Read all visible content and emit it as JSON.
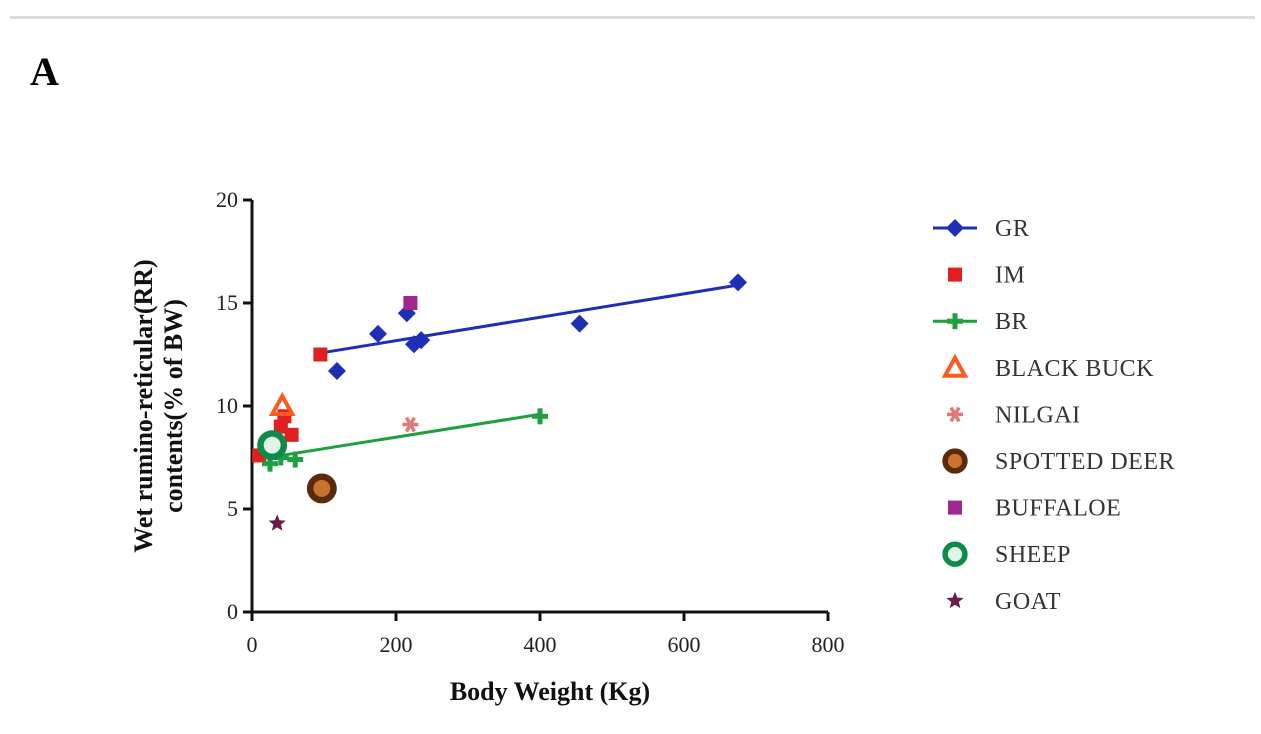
{
  "panel_label": "A",
  "chart_data": {
    "type": "scatter",
    "title": "",
    "xlabel": "Body Weight (Kg)",
    "ylabel_lines": [
      "Wet rumino-reticular(RR)",
      "contents(% of BW)"
    ],
    "xlim": [
      0,
      800
    ],
    "ylim": [
      0,
      20
    ],
    "xticks": [
      0,
      200,
      400,
      600,
      800
    ],
    "yticks": [
      0,
      5,
      10,
      15,
      20
    ],
    "legend_position": "right",
    "series": [
      {
        "name": "GR",
        "color": "#1f2fb5",
        "marker": "diamond",
        "fit_line": true,
        "points": [
          [
            118,
            11.7
          ],
          [
            175,
            13.5
          ],
          [
            215,
            14.5
          ],
          [
            225,
            13.0
          ],
          [
            235,
            13.2
          ],
          [
            455,
            14.0
          ],
          [
            675,
            16.0
          ]
        ],
        "line": [
          [
            100,
            12.6
          ],
          [
            680,
            15.9
          ]
        ]
      },
      {
        "name": "IM",
        "color": "#e02020",
        "marker": "square",
        "fit_line": false,
        "points": [
          [
            10,
            7.6
          ],
          [
            40,
            9.0
          ],
          [
            45,
            9.5
          ],
          [
            55,
            8.6
          ],
          [
            95,
            12.5
          ]
        ]
      },
      {
        "name": "BR",
        "color": "#1fa040",
        "marker": "plus",
        "fit_line": true,
        "points": [
          [
            25,
            7.2
          ],
          [
            40,
            7.5
          ],
          [
            60,
            7.4
          ],
          [
            400,
            9.5
          ]
        ],
        "line": [
          [
            5,
            7.4
          ],
          [
            400,
            9.6
          ]
        ]
      },
      {
        "name": "BLACK BUCK",
        "color": "#ff5a1e",
        "marker": "triangle",
        "fit_line": false,
        "points": [
          [
            42,
            10.0
          ]
        ]
      },
      {
        "name": "NILGAI",
        "color": "#e07a7a",
        "marker": "asterisk",
        "fit_line": false,
        "points": [
          [
            220,
            9.1
          ]
        ]
      },
      {
        "name": "SPOTTED DEER",
        "color": "#5a2a0a",
        "marker": "ring",
        "fit_line": false,
        "points": [
          [
            97,
            6.0
          ]
        ]
      },
      {
        "name": "BUFFALOE",
        "color": "#a0288c",
        "marker": "square",
        "fit_line": false,
        "points": [
          [
            220,
            15.0
          ]
        ]
      },
      {
        "name": "SHEEP",
        "color": "#0e8a4a",
        "marker": "circle",
        "fit_line": false,
        "points": [
          [
            28,
            8.1
          ]
        ]
      },
      {
        "name": "GOAT",
        "color": "#6a1f4a",
        "marker": "star",
        "fit_line": false,
        "points": [
          [
            35,
            4.3
          ]
        ]
      }
    ]
  }
}
